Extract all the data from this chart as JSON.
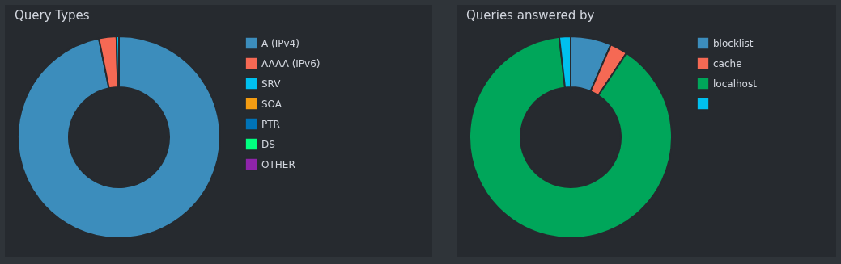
{
  "chart_data": [
    {
      "type": "donut",
      "title": "Query Types",
      "categories": [
        "A (IPv4)",
        "AAAA (IPv6)",
        "SRV",
        "SOA",
        "PTR",
        "DS",
        "OTHER"
      ],
      "values": [
        96.8,
        2.8,
        0.4,
        0,
        null,
        0,
        0
      ],
      "colors": [
        "#3c8dbc",
        "#f56954",
        "#00c0ef",
        "#f39c12",
        "#0073b7",
        "#00ff80",
        "#8e24aa"
      ],
      "legend": "right"
    },
    {
      "type": "donut",
      "title": "Queries answered by",
      "categories": [
        "blocklist",
        "cache",
        "localhost",
        null
      ],
      "values": [
        6.5,
        2.8,
        88.9,
        1.8
      ],
      "colors": [
        "#3c8dbc",
        "#f56954",
        "#00a65a",
        "#00c0ef"
      ],
      "legend": "right"
    }
  ]
}
